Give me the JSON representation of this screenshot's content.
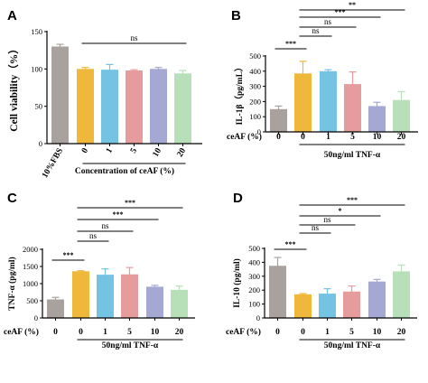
{
  "chart_data": [
    {
      "panel": "A",
      "type": "bar",
      "ylabel": "Cell viability（%）",
      "xlabel": "Concentration of ceAF (%)",
      "ylim": [
        0,
        150
      ],
      "yticks": [
        "0",
        "50",
        "100",
        "150"
      ],
      "categories": [
        "10%FBS",
        "0",
        "1",
        "5",
        "10",
        "20"
      ],
      "values": [
        130,
        100,
        99,
        98,
        100,
        94
      ],
      "errors": [
        3,
        2,
        7,
        1,
        2,
        4
      ],
      "colors": [
        "#a8a19d",
        "#f0b83a",
        "#74c3e3",
        "#e69c9c",
        "#a4a8d2",
        "#b7dfb8"
      ],
      "significance": [
        {
          "from": 1,
          "to": 5,
          "label": "ns"
        }
      ]
    },
    {
      "panel": "B",
      "type": "bar",
      "ylabel": "IL-1β（pg/mL）",
      "row_label": "ceAF (%)",
      "group_label": "50ng/ml TNF-α",
      "ylim": [
        0,
        500
      ],
      "yticks": [
        "0",
        "100",
        "200",
        "300",
        "400",
        "500"
      ],
      "categories": [
        "0",
        "0",
        "1",
        "5",
        "10",
        "20"
      ],
      "values": [
        150,
        385,
        400,
        315,
        170,
        210
      ],
      "errors": [
        20,
        80,
        10,
        80,
        25,
        55
      ],
      "colors": [
        "#a8a19d",
        "#f0b83a",
        "#74c3e3",
        "#e69c9c",
        "#a4a8d2",
        "#b7dfb8"
      ],
      "significance": [
        {
          "from": 0,
          "to": 1,
          "label": "***"
        },
        {
          "from": 1,
          "to": 2,
          "label": "ns"
        },
        {
          "from": 1,
          "to": 3,
          "label": "ns"
        },
        {
          "from": 1,
          "to": 4,
          "label": "***"
        },
        {
          "from": 1,
          "to": 5,
          "label": "**"
        }
      ]
    },
    {
      "panel": "C",
      "type": "bar",
      "ylabel": "TNF-α (pg/ml)",
      "row_label": "ceAF (%)",
      "group_label": "50ng/ml TNF-α",
      "ylim": [
        0,
        2000
      ],
      "yticks": [
        "0",
        "500",
        "1000",
        "1500",
        "2000"
      ],
      "categories": [
        "0",
        "0",
        "1",
        "5",
        "10",
        "20"
      ],
      "values": [
        540,
        1360,
        1260,
        1270,
        910,
        820
      ],
      "errors": [
        60,
        15,
        170,
        200,
        40,
        110
      ],
      "colors": [
        "#a8a19d",
        "#f0b83a",
        "#74c3e3",
        "#e69c9c",
        "#a4a8d2",
        "#b7dfb8"
      ],
      "significance": [
        {
          "from": 0,
          "to": 1,
          "label": "***"
        },
        {
          "from": 1,
          "to": 2,
          "label": "ns"
        },
        {
          "from": 1,
          "to": 3,
          "label": "ns"
        },
        {
          "from": 1,
          "to": 4,
          "label": "***"
        },
        {
          "from": 1,
          "to": 5,
          "label": "***"
        }
      ]
    },
    {
      "panel": "D",
      "type": "bar",
      "ylabel": "IL-10 (pg/ml)",
      "row_label": "ceAF (%)",
      "group_label": "50ng/ml TNF-α",
      "ylim": [
        0,
        500
      ],
      "yticks": [
        "0",
        "100",
        "200",
        "300",
        "400",
        "500"
      ],
      "categories": [
        "0",
        "0",
        "1",
        "5",
        "10",
        "20"
      ],
      "values": [
        375,
        170,
        175,
        190,
        262,
        335
      ],
      "errors": [
        60,
        5,
        35,
        40,
        15,
        45
      ],
      "colors": [
        "#a8a19d",
        "#f0b83a",
        "#74c3e3",
        "#e69c9c",
        "#a4a8d2",
        "#b7dfb8"
      ],
      "significance": [
        {
          "from": 0,
          "to": 1,
          "label": "***"
        },
        {
          "from": 1,
          "to": 2,
          "label": "ns"
        },
        {
          "from": 1,
          "to": 3,
          "label": "ns"
        },
        {
          "from": 1,
          "to": 4,
          "label": "*"
        },
        {
          "from": 1,
          "to": 5,
          "label": "***"
        }
      ]
    }
  ]
}
